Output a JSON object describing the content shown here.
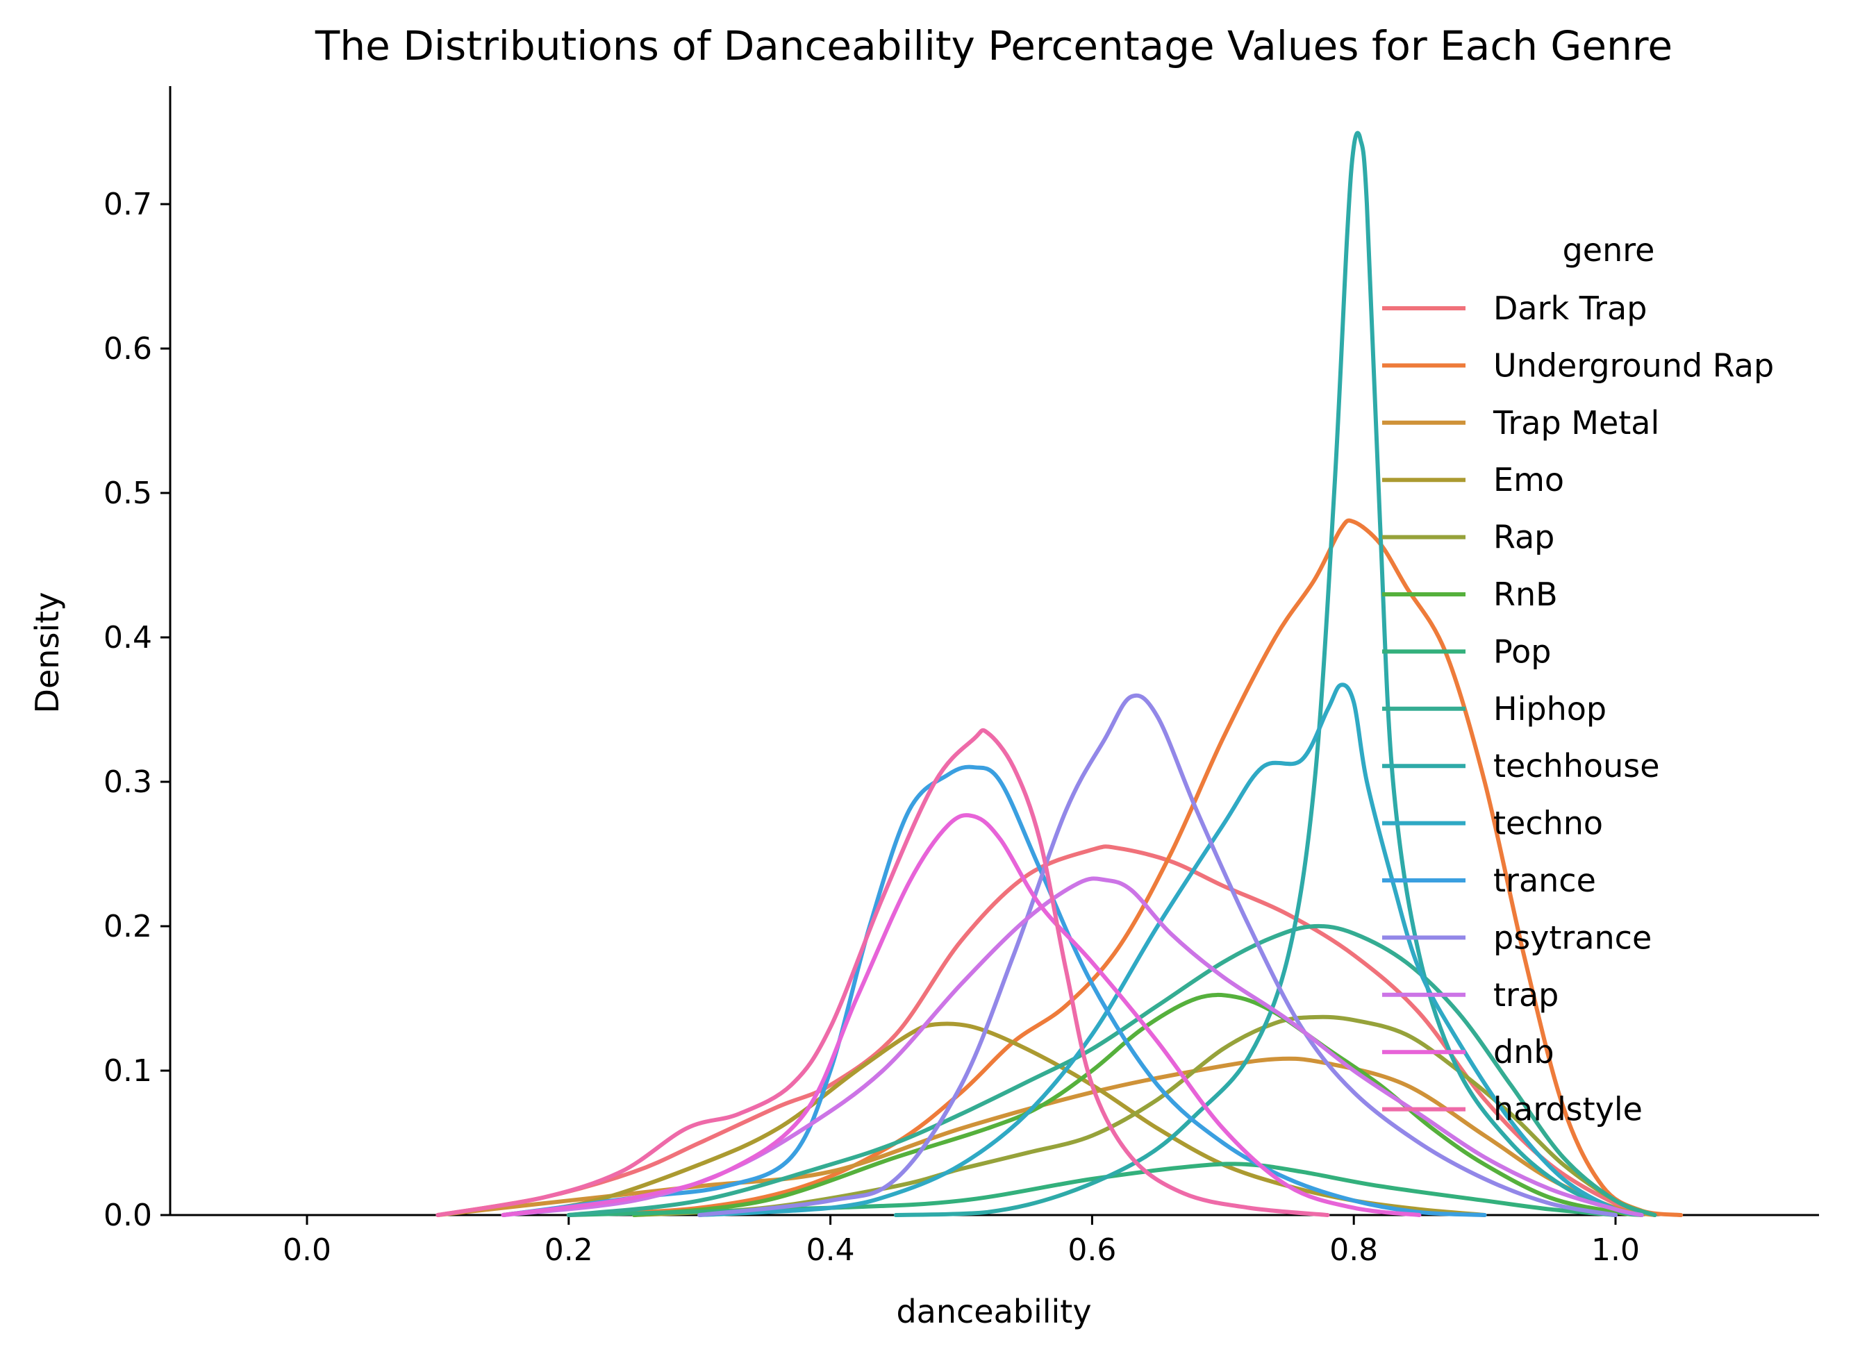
{
  "chart_data": {
    "type": "line",
    "title": "The Distributions of Danceability Percentage Values for Each Genre",
    "xlabel": "danceability",
    "ylabel": "Density",
    "xlim": [
      -0.11,
      1.15
    ],
    "ylim": [
      0.0,
      0.77
    ],
    "x_ticks": [
      "0.0",
      "0.2",
      "0.4",
      "0.6",
      "0.8",
      "1.0"
    ],
    "y_ticks": [
      "0.0",
      "0.1",
      "0.2",
      "0.3",
      "0.4",
      "0.5",
      "0.6",
      "0.7"
    ],
    "grid": false,
    "legend": {
      "title": "genre",
      "placement": "right"
    },
    "series": [
      {
        "name": "Dark Trap",
        "color": "#f0717a",
        "points": [
          [
            0.1,
            0.0
          ],
          [
            0.18,
            0.012
          ],
          [
            0.25,
            0.03
          ],
          [
            0.3,
            0.05
          ],
          [
            0.36,
            0.075
          ],
          [
            0.4,
            0.09
          ],
          [
            0.45,
            0.125
          ],
          [
            0.5,
            0.19
          ],
          [
            0.55,
            0.235
          ],
          [
            0.6,
            0.253
          ],
          [
            0.62,
            0.254
          ],
          [
            0.66,
            0.245
          ],
          [
            0.7,
            0.228
          ],
          [
            0.75,
            0.208
          ],
          [
            0.8,
            0.18
          ],
          [
            0.85,
            0.14
          ],
          [
            0.9,
            0.08
          ],
          [
            0.95,
            0.035
          ],
          [
            1.0,
            0.008
          ],
          [
            1.03,
            0.0
          ]
        ]
      },
      {
        "name": "Underground Rap",
        "color": "#ee7b3a",
        "points": [
          [
            0.2,
            0.0
          ],
          [
            0.3,
            0.005
          ],
          [
            0.38,
            0.02
          ],
          [
            0.45,
            0.05
          ],
          [
            0.5,
            0.085
          ],
          [
            0.54,
            0.12
          ],
          [
            0.58,
            0.145
          ],
          [
            0.62,
            0.185
          ],
          [
            0.66,
            0.25
          ],
          [
            0.7,
            0.33
          ],
          [
            0.74,
            0.4
          ],
          [
            0.77,
            0.44
          ],
          [
            0.79,
            0.475
          ],
          [
            0.8,
            0.48
          ],
          [
            0.82,
            0.465
          ],
          [
            0.84,
            0.435
          ],
          [
            0.87,
            0.39
          ],
          [
            0.9,
            0.3
          ],
          [
            0.93,
            0.18
          ],
          [
            0.96,
            0.075
          ],
          [
            0.99,
            0.02
          ],
          [
            1.02,
            0.003
          ],
          [
            1.05,
            0.0
          ]
        ]
      },
      {
        "name": "Trap Metal",
        "color": "#cf9238",
        "points": [
          [
            0.1,
            0.0
          ],
          [
            0.2,
            0.01
          ],
          [
            0.3,
            0.02
          ],
          [
            0.4,
            0.03
          ],
          [
            0.5,
            0.06
          ],
          [
            0.6,
            0.085
          ],
          [
            0.68,
            0.1
          ],
          [
            0.74,
            0.108
          ],
          [
            0.78,
            0.105
          ],
          [
            0.84,
            0.09
          ],
          [
            0.9,
            0.055
          ],
          [
            0.95,
            0.025
          ],
          [
            1.0,
            0.005
          ],
          [
            1.03,
            0.0
          ]
        ]
      },
      {
        "name": "Emo",
        "color": "#ab9a30",
        "points": [
          [
            0.15,
            0.0
          ],
          [
            0.22,
            0.01
          ],
          [
            0.3,
            0.035
          ],
          [
            0.36,
            0.06
          ],
          [
            0.42,
            0.1
          ],
          [
            0.46,
            0.125
          ],
          [
            0.48,
            0.132
          ],
          [
            0.51,
            0.13
          ],
          [
            0.55,
            0.115
          ],
          [
            0.6,
            0.09
          ],
          [
            0.65,
            0.06
          ],
          [
            0.7,
            0.035
          ],
          [
            0.75,
            0.02
          ],
          [
            0.8,
            0.01
          ],
          [
            0.85,
            0.004
          ],
          [
            0.9,
            0.0
          ]
        ]
      },
      {
        "name": "Rap",
        "color": "#96a23a",
        "points": [
          [
            0.25,
            0.0
          ],
          [
            0.35,
            0.005
          ],
          [
            0.45,
            0.02
          ],
          [
            0.5,
            0.032
          ],
          [
            0.55,
            0.043
          ],
          [
            0.6,
            0.055
          ],
          [
            0.65,
            0.08
          ],
          [
            0.7,
            0.115
          ],
          [
            0.74,
            0.133
          ],
          [
            0.77,
            0.137
          ],
          [
            0.8,
            0.135
          ],
          [
            0.84,
            0.125
          ],
          [
            0.88,
            0.1
          ],
          [
            0.92,
            0.07
          ],
          [
            0.96,
            0.035
          ],
          [
            1.0,
            0.01
          ],
          [
            1.03,
            0.0
          ]
        ]
      },
      {
        "name": "RnB",
        "color": "#55b03c",
        "points": [
          [
            0.25,
            0.0
          ],
          [
            0.35,
            0.01
          ],
          [
            0.45,
            0.04
          ],
          [
            0.52,
            0.06
          ],
          [
            0.56,
            0.075
          ],
          [
            0.6,
            0.1
          ],
          [
            0.64,
            0.13
          ],
          [
            0.68,
            0.15
          ],
          [
            0.71,
            0.151
          ],
          [
            0.74,
            0.14
          ],
          [
            0.78,
            0.115
          ],
          [
            0.82,
            0.09
          ],
          [
            0.86,
            0.06
          ],
          [
            0.9,
            0.035
          ],
          [
            0.95,
            0.012
          ],
          [
            1.0,
            0.002
          ],
          [
            1.02,
            0.0
          ]
        ]
      },
      {
        "name": "Pop",
        "color": "#33b07c",
        "points": [
          [
            0.2,
            0.0
          ],
          [
            0.4,
            0.005
          ],
          [
            0.5,
            0.01
          ],
          [
            0.6,
            0.025
          ],
          [
            0.68,
            0.034
          ],
          [
            0.72,
            0.035
          ],
          [
            0.76,
            0.03
          ],
          [
            0.82,
            0.02
          ],
          [
            0.9,
            0.01
          ],
          [
            0.95,
            0.004
          ],
          [
            1.0,
            0.0
          ]
        ]
      },
      {
        "name": "Hiphop",
        "color": "#34ac92",
        "points": [
          [
            0.2,
            0.0
          ],
          [
            0.3,
            0.01
          ],
          [
            0.4,
            0.035
          ],
          [
            0.45,
            0.05
          ],
          [
            0.5,
            0.07
          ],
          [
            0.55,
            0.092
          ],
          [
            0.6,
            0.115
          ],
          [
            0.65,
            0.145
          ],
          [
            0.7,
            0.175
          ],
          [
            0.74,
            0.193
          ],
          [
            0.77,
            0.2
          ],
          [
            0.8,
            0.195
          ],
          [
            0.84,
            0.175
          ],
          [
            0.88,
            0.14
          ],
          [
            0.92,
            0.09
          ],
          [
            0.96,
            0.04
          ],
          [
            1.0,
            0.01
          ],
          [
            1.03,
            0.0
          ]
        ]
      },
      {
        "name": "techhouse",
        "color": "#2eaaa8",
        "points": [
          [
            0.45,
            0.0
          ],
          [
            0.52,
            0.002
          ],
          [
            0.58,
            0.015
          ],
          [
            0.64,
            0.04
          ],
          [
            0.68,
            0.07
          ],
          [
            0.72,
            0.11
          ],
          [
            0.75,
            0.18
          ],
          [
            0.77,
            0.3
          ],
          [
            0.785,
            0.5
          ],
          [
            0.795,
            0.68
          ],
          [
            0.8,
            0.74
          ],
          [
            0.805,
            0.745
          ],
          [
            0.81,
            0.7
          ],
          [
            0.82,
            0.48
          ],
          [
            0.83,
            0.3
          ],
          [
            0.85,
            0.18
          ],
          [
            0.88,
            0.1
          ],
          [
            0.92,
            0.05
          ],
          [
            0.96,
            0.02
          ],
          [
            1.0,
            0.004
          ],
          [
            1.02,
            0.0
          ]
        ]
      },
      {
        "name": "techno",
        "color": "#2fa9c4",
        "points": [
          [
            0.3,
            0.0
          ],
          [
            0.4,
            0.005
          ],
          [
            0.45,
            0.015
          ],
          [
            0.5,
            0.035
          ],
          [
            0.55,
            0.07
          ],
          [
            0.6,
            0.125
          ],
          [
            0.65,
            0.2
          ],
          [
            0.7,
            0.27
          ],
          [
            0.73,
            0.31
          ],
          [
            0.76,
            0.315
          ],
          [
            0.78,
            0.35
          ],
          [
            0.79,
            0.367
          ],
          [
            0.8,
            0.355
          ],
          [
            0.81,
            0.3
          ],
          [
            0.83,
            0.23
          ],
          [
            0.85,
            0.17
          ],
          [
            0.88,
            0.12
          ],
          [
            0.92,
            0.065
          ],
          [
            0.96,
            0.025
          ],
          [
            1.0,
            0.004
          ],
          [
            1.02,
            0.0
          ]
        ]
      },
      {
        "name": "trance",
        "color": "#3a9fe0",
        "points": [
          [
            0.15,
            0.0
          ],
          [
            0.25,
            0.012
          ],
          [
            0.32,
            0.02
          ],
          [
            0.37,
            0.04
          ],
          [
            0.4,
            0.1
          ],
          [
            0.43,
            0.2
          ],
          [
            0.46,
            0.28
          ],
          [
            0.49,
            0.305
          ],
          [
            0.51,
            0.31
          ],
          [
            0.53,
            0.3
          ],
          [
            0.56,
            0.24
          ],
          [
            0.6,
            0.16
          ],
          [
            0.65,
            0.09
          ],
          [
            0.7,
            0.05
          ],
          [
            0.75,
            0.025
          ],
          [
            0.8,
            0.01
          ],
          [
            0.85,
            0.002
          ],
          [
            0.9,
            0.0
          ]
        ]
      },
      {
        "name": "psytrance",
        "color": "#9287e8",
        "points": [
          [
            0.3,
            0.0
          ],
          [
            0.4,
            0.01
          ],
          [
            0.45,
            0.025
          ],
          [
            0.5,
            0.09
          ],
          [
            0.54,
            0.18
          ],
          [
            0.58,
            0.28
          ],
          [
            0.61,
            0.33
          ],
          [
            0.63,
            0.359
          ],
          [
            0.65,
            0.345
          ],
          [
            0.68,
            0.28
          ],
          [
            0.72,
            0.2
          ],
          [
            0.76,
            0.13
          ],
          [
            0.8,
            0.085
          ],
          [
            0.85,
            0.05
          ],
          [
            0.9,
            0.025
          ],
          [
            0.95,
            0.008
          ],
          [
            1.0,
            0.0
          ]
        ]
      },
      {
        "name": "trap",
        "color": "#cc74e6",
        "points": [
          [
            0.15,
            0.0
          ],
          [
            0.25,
            0.01
          ],
          [
            0.32,
            0.03
          ],
          [
            0.38,
            0.06
          ],
          [
            0.44,
            0.1
          ],
          [
            0.5,
            0.16
          ],
          [
            0.55,
            0.205
          ],
          [
            0.59,
            0.23
          ],
          [
            0.61,
            0.232
          ],
          [
            0.63,
            0.225
          ],
          [
            0.66,
            0.195
          ],
          [
            0.7,
            0.165
          ],
          [
            0.75,
            0.135
          ],
          [
            0.8,
            0.1
          ],
          [
            0.85,
            0.07
          ],
          [
            0.9,
            0.04
          ],
          [
            0.95,
            0.018
          ],
          [
            1.0,
            0.004
          ],
          [
            1.02,
            0.0
          ]
        ]
      },
      {
        "name": "dnb",
        "color": "#e763d8",
        "points": [
          [
            0.15,
            0.0
          ],
          [
            0.25,
            0.012
          ],
          [
            0.32,
            0.03
          ],
          [
            0.38,
            0.07
          ],
          [
            0.42,
            0.15
          ],
          [
            0.46,
            0.23
          ],
          [
            0.49,
            0.27
          ],
          [
            0.51,
            0.276
          ],
          [
            0.53,
            0.26
          ],
          [
            0.56,
            0.215
          ],
          [
            0.6,
            0.175
          ],
          [
            0.65,
            0.12
          ],
          [
            0.7,
            0.06
          ],
          [
            0.75,
            0.02
          ],
          [
            0.8,
            0.005
          ],
          [
            0.85,
            0.0
          ]
        ]
      },
      {
        "name": "hardstyle",
        "color": "#ee6aa8",
        "points": [
          [
            0.1,
            0.0
          ],
          [
            0.18,
            0.012
          ],
          [
            0.24,
            0.03
          ],
          [
            0.29,
            0.06
          ],
          [
            0.33,
            0.07
          ],
          [
            0.37,
            0.09
          ],
          [
            0.4,
            0.13
          ],
          [
            0.44,
            0.22
          ],
          [
            0.48,
            0.3
          ],
          [
            0.51,
            0.33
          ],
          [
            0.52,
            0.334
          ],
          [
            0.54,
            0.31
          ],
          [
            0.56,
            0.26
          ],
          [
            0.58,
            0.17
          ],
          [
            0.6,
            0.09
          ],
          [
            0.63,
            0.04
          ],
          [
            0.67,
            0.015
          ],
          [
            0.72,
            0.005
          ],
          [
            0.78,
            0.0
          ]
        ]
      }
    ]
  }
}
